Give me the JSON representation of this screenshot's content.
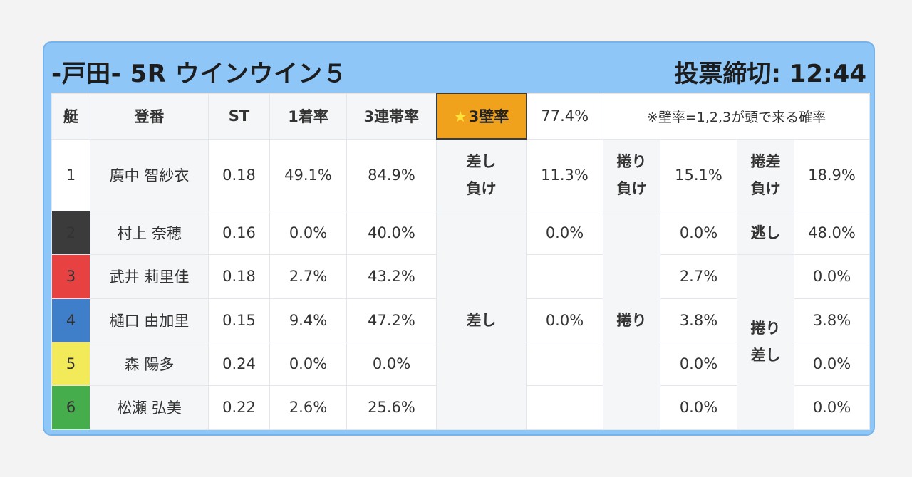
{
  "header": {
    "race_title": "-戸田- 5R ウインウイン５",
    "deadline": "投票締切: 12:44"
  },
  "table": {
    "columns": {
      "boat": "艇",
      "name": "登番",
      "st": "ST",
      "first_rate": "1着率",
      "trifecta_rate": "3連帯率",
      "wall_rate_icon": "star-icon",
      "wall_rate_star": "★",
      "wall_rate_label": "3壁率",
      "wall_rate_value": "77.4%",
      "note": "※壁率=1,2,3が頭で来る確率"
    },
    "rows": [
      {
        "boat": "1",
        "name": "廣中 智紗衣",
        "st": "0.18",
        "first_rate": "49.1%",
        "trifecta_rate": "84.9%"
      },
      {
        "boat": "2",
        "name": "村上 奈穂",
        "st": "0.16",
        "first_rate": "0.0%",
        "trifecta_rate": "40.0%"
      },
      {
        "boat": "3",
        "name": "武井 莉里佳",
        "st": "0.18",
        "first_rate": "2.7%",
        "trifecta_rate": "43.2%"
      },
      {
        "boat": "4",
        "name": "樋口 由加里",
        "st": "0.15",
        "first_rate": "9.4%",
        "trifecta_rate": "47.2%"
      },
      {
        "boat": "5",
        "name": "森 陽多",
        "st": "0.24",
        "first_rate": "0.0%",
        "trifecta_rate": "0.0%"
      },
      {
        "boat": "6",
        "name": "松瀬 弘美",
        "st": "0.22",
        "first_rate": "2.6%",
        "trifecta_rate": "25.6%"
      }
    ],
    "patterns": {
      "sashi_make_line1": "差し",
      "sashi_make_line2": "負け",
      "sashi_make_value": "11.3%",
      "makuri_make_line1": "捲り",
      "makuri_make_line2": "負け",
      "makuri_make_value": "15.1%",
      "makurisashi_make_line1": "捲差",
      "makurisashi_make_line2": "負け",
      "makurisashi_make_value": "18.9%",
      "sashi": "差し",
      "sashi_value_r2": "0.0%",
      "sashi_value_r4": "0.0%",
      "makuri": "捲り",
      "makuri_values": [
        "0.0%",
        "2.7%",
        "3.8%",
        "0.0%",
        "0.0%"
      ],
      "nige": "逃し",
      "nige_value": "48.0%",
      "makurisashi_line1": "捲り",
      "makurisashi_line2": "差し",
      "makurisashi_values": [
        "0.0%",
        "3.8%",
        "0.0%",
        "0.0%"
      ]
    },
    "colors": {
      "boat1": "#ffffff",
      "boat2": "#3b3b3b",
      "boat3": "#e84141",
      "boat4": "#3f7fc9",
      "boat5": "#f3ea5a",
      "boat6": "#46ad4c",
      "wall_highlight": "#f0a21d",
      "panel": "#8dc6f7"
    }
  }
}
